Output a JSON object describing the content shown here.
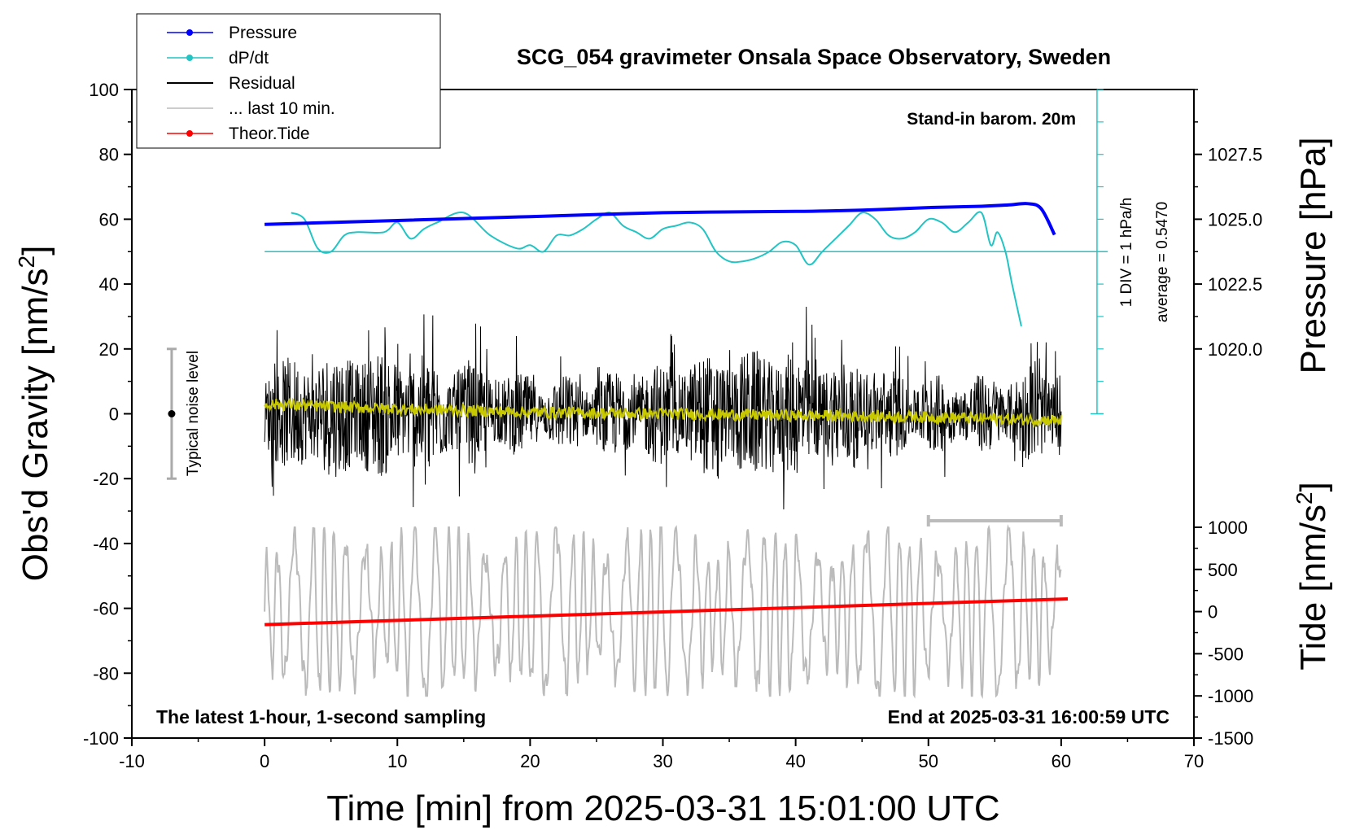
{
  "chart_data": {
    "type": "line",
    "title": "SCG_054 gravimeter Onsala Space Observatory, Sweden",
    "xlabel": "Time [min] from 2025-03-31 15:01:00 UTC",
    "ylabel_left": "Obs'd Gravity [nm/s",
    "ylabel_left_sup": "2",
    "ylabel_left_close": "]",
    "ylabel_right_pressure": "Pressure [hPa]",
    "ylabel_right_tide": "Tide [nm/s",
    "ylabel_right_tide_sup": "2",
    "ylabel_right_tide_close": "]",
    "xlim": [
      -10,
      70
    ],
    "ylim": [
      -100,
      100
    ],
    "pressure_lim": [
      1017.5,
      1030.0
    ],
    "tide_lim": [
      -1500,
      1500
    ],
    "x_ticks": [
      "-10",
      "0",
      "10",
      "20",
      "30",
      "40",
      "50",
      "60",
      "70"
    ],
    "y_ticks": [
      "100",
      "80",
      "60",
      "40",
      "20",
      "0",
      "-20",
      "-40",
      "-60",
      "-80",
      "-100"
    ],
    "pressure_ticks": [
      "1027.5",
      "1025.0",
      "1022.5",
      "1020.0"
    ],
    "tide_ticks": [
      "1000",
      "500",
      "0",
      "-500",
      "-1000",
      "-1500"
    ],
    "legend": {
      "position": "top-left",
      "entries": [
        {
          "label": "Pressure",
          "color": "#0000ff",
          "marker": true
        },
        {
          "label": "dP/dt",
          "color": "#22c4c4",
          "marker": true
        },
        {
          "label": "Residual",
          "color": "#000000",
          "marker": false
        },
        {
          "label": "... last 10 min.",
          "color": "#bbbbbb",
          "marker": false
        },
        {
          "label": "Theor.Tide",
          "color": "#ff0000",
          "marker": true
        }
      ]
    },
    "annotations": {
      "stand_in": "Stand-in barom. 20m",
      "div_note": "1 DIV = 1 hPa/h",
      "average_note": "average = 0.5470",
      "noise_label": "Typical noise level",
      "bottom_left": "The latest 1-hour, 1-second sampling",
      "bottom_right": "End at 2025-03-31 16:00:59 UTC"
    },
    "noise_bar": {
      "x": -7,
      "y_low": -20,
      "y_high": 20
    },
    "ten_min_bar": {
      "x_start": 50,
      "x_end": 60,
      "y": -33
    },
    "series": [
      {
        "name": "Pressure",
        "color": "#0000ff",
        "axis": "pressure",
        "x": [
          0,
          10,
          20,
          30,
          40,
          45,
          50,
          54,
          56,
          57.5,
          58.5,
          59.5
        ],
        "y": [
          1024.8,
          1024.95,
          1025.1,
          1025.25,
          1025.3,
          1025.35,
          1025.45,
          1025.5,
          1025.55,
          1025.6,
          1025.4,
          1024.4
        ]
      },
      {
        "name": "dP/dt",
        "color": "#22c4c4",
        "axis": "gravity",
        "x": [
          2,
          3,
          4,
          5,
          6,
          7,
          9,
          10,
          11,
          12,
          13,
          15,
          17,
          19,
          20,
          21,
          22,
          23,
          24,
          25,
          26,
          27,
          28,
          29,
          30,
          31,
          32,
          33,
          34,
          35,
          36,
          37,
          38,
          39,
          40,
          41,
          42,
          43,
          44,
          45,
          46,
          47,
          48,
          49,
          50,
          51,
          52,
          53,
          54,
          54.7,
          55.2,
          55.8,
          56.3,
          57
        ],
        "y": [
          62,
          60,
          51,
          50,
          55,
          56,
          56,
          59,
          54,
          57,
          59,
          62,
          55,
          51,
          52,
          50,
          55,
          55,
          57,
          60,
          62,
          58,
          56,
          54,
          57,
          58,
          59,
          57,
          50,
          47,
          47,
          48,
          50,
          53,
          52,
          46,
          50,
          54,
          58,
          62,
          60,
          55,
          54,
          56,
          60,
          59,
          56,
          59,
          62,
          52,
          56,
          50,
          40,
          27
        ]
      },
      {
        "name": "Residual",
        "color": "#000000",
        "axis": "gravity",
        "x_range": [
          0,
          60
        ],
        "approx_range": [
          -30,
          33
        ],
        "mean": 0
      },
      {
        "name": "Residual smoothed",
        "color": "#c8c800",
        "axis": "gravity",
        "x": [
          0,
          10,
          20,
          30,
          40,
          50,
          60
        ],
        "y": [
          3,
          1.5,
          0.5,
          0,
          -0.5,
          -1,
          -2
        ]
      },
      {
        "name": "... last 10 min.",
        "color": "#bbbbbb",
        "axis": "gravity",
        "x_range": [
          0,
          60
        ],
        "approx_range": [
          -87,
          -35
        ]
      },
      {
        "name": "Theor.Tide",
        "color": "#ff0000",
        "axis": "tide",
        "x": [
          0,
          60.5
        ],
        "y": [
          -155,
          150
        ]
      }
    ]
  }
}
